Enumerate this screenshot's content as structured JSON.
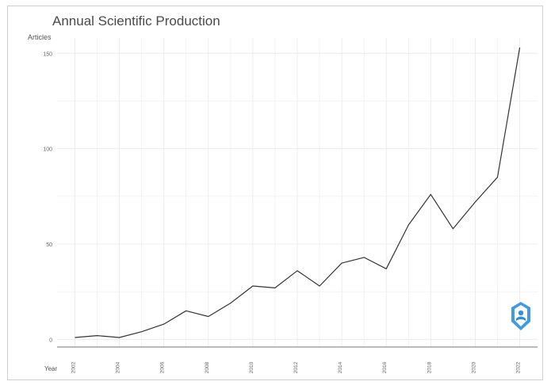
{
  "chart_data": {
    "type": "line",
    "title": "Annual Scientific Production",
    "xlabel": "Year",
    "ylabel": "Articles",
    "x": [
      2002,
      2003,
      2004,
      2005,
      2006,
      2007,
      2008,
      2009,
      2010,
      2011,
      2012,
      2013,
      2014,
      2015,
      2016,
      2017,
      2018,
      2019,
      2020,
      2021,
      2022
    ],
    "values": [
      1,
      2,
      1,
      4,
      8,
      15,
      12,
      19,
      28,
      27,
      36,
      28,
      40,
      43,
      37,
      60,
      76,
      58,
      72,
      85,
      153
    ],
    "x_tick_labels": [
      "2002",
      "2004",
      "2006",
      "2008",
      "2010",
      "2012",
      "2014",
      "2016",
      "2018",
      "2020",
      "2022"
    ],
    "y_ticks": [
      0,
      50,
      100,
      150
    ],
    "ylim": [
      -4,
      158
    ],
    "xlim": [
      2001.2,
      2022.8
    ],
    "grid": true,
    "line_color": "#333333",
    "grid_color": "#ececec"
  },
  "watermark": {
    "icon": "shield-logo-icon",
    "color": "#2f8fd8"
  }
}
